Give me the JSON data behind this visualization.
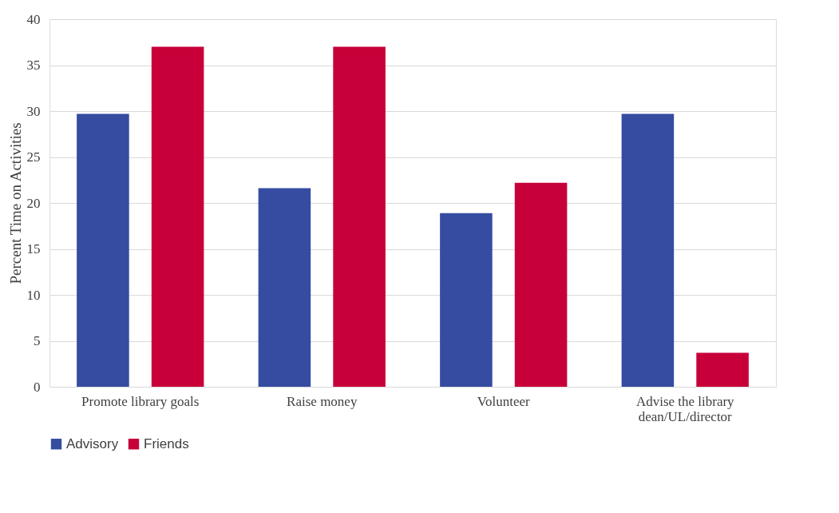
{
  "chart_data": {
    "type": "bar",
    "ylabel": "Percent Time on Activities",
    "categories": [
      "Promote library goals",
      "Raise money",
      "Volunteer",
      "Advise the library dean/UL/director"
    ],
    "series": [
      {
        "name": "Advisory",
        "color": "#354ca1",
        "values": [
          29.7,
          21.6,
          18.9,
          29.7
        ]
      },
      {
        "name": "Friends",
        "color": "#c8003a",
        "values": [
          37.0,
          37.0,
          22.2,
          3.7
        ]
      }
    ],
    "ylim": [
      0,
      40
    ],
    "yticks": [
      0,
      5,
      10,
      15,
      20,
      25,
      30,
      35,
      40
    ],
    "grid": "y",
    "legend": "bottom"
  }
}
